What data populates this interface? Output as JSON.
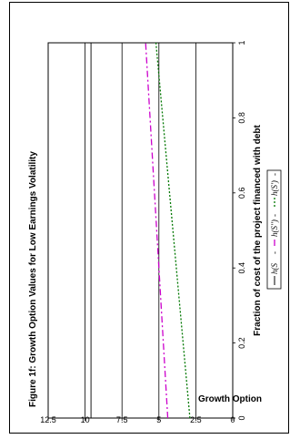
{
  "chart_data": {
    "type": "line",
    "title": "Figure 1f: Growth Option Values for Low Earnings Volatility",
    "xlabel": "Fraction of cost of the project financed with debt",
    "ylabel": "Growth Option",
    "xlim": [
      0,
      1
    ],
    "ylim": [
      0,
      12.5
    ],
    "x_ticks": [
      "0",
      "0.2",
      "0.4",
      "0.6",
      "0.8",
      "1"
    ],
    "y_ticks": [
      "0",
      "2.5",
      "5",
      "7.5",
      "10",
      "12.5"
    ],
    "grid": "horizontal",
    "legend_position": "right",
    "series": [
      {
        "name": "h(S",
        "x": [
          0,
          1
        ],
        "y": [
          9.6,
          9.6
        ],
        "color": "#000000",
        "style": "solid"
      },
      {
        "name": "h(S'')",
        "x": [
          0,
          1
        ],
        "y": [
          4.4,
          5.9
        ],
        "color": "#cc00cc",
        "style": "dashdot"
      },
      {
        "name": "h(S')",
        "x": [
          0,
          1
        ],
        "y": [
          2.9,
          5.2
        ],
        "color": "#007700",
        "style": "dotted"
      }
    ],
    "legend_separators": [
      "-",
      "-",
      "-"
    ]
  }
}
